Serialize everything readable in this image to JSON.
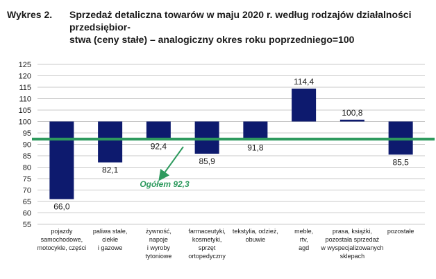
{
  "figure": {
    "label": "Wykres 2.",
    "title_line1": "Sprzedaż detaliczna towarów w maju 2020 r. według rodzajów działalności przedsiębior-",
    "title_line2": "stwa (ceny stałe) – analogiczny okres roku poprzedniego=100"
  },
  "chart_data": {
    "type": "bar",
    "baseline": 100,
    "ylim": [
      55,
      125
    ],
    "yticks": [
      55,
      60,
      65,
      70,
      75,
      80,
      85,
      90,
      95,
      100,
      105,
      110,
      115,
      120,
      125
    ],
    "grid": true,
    "categories": [
      [
        "pojazdy",
        "samochodowe,",
        "motocykle, części"
      ],
      [
        "paliwa stałe,",
        "ciekłe",
        "i gazowe"
      ],
      [
        "żywność,",
        "napoje",
        "i wyroby",
        "tytoniowe"
      ],
      [
        "farmaceutyki,",
        "kosmetyki,",
        "sprzęt",
        "ortopedyczny"
      ],
      [
        "tekstylia, odzież,",
        "obuwie"
      ],
      [
        "meble,",
        "rtv,",
        "agd"
      ],
      [
        "prasa, książki,",
        "pozostała sprzedaż",
        "w wyspecjalizowanych",
        "sklepach"
      ],
      [
        "pozostałe"
      ]
    ],
    "values": [
      66.0,
      82.1,
      92.4,
      85.9,
      91.8,
      114.4,
      100.8,
      85.5
    ],
    "value_labels": [
      "66,0",
      "82,1",
      "92,4",
      "85,9",
      "91,8",
      "114,4",
      "100,8",
      "85,5"
    ],
    "average": {
      "value": 92.3,
      "label": "Ogółem 92,3"
    },
    "colors": {
      "bar": "#0d1a6e",
      "average_line": "#2e9a5e",
      "grid": "#c8c8c8"
    }
  }
}
